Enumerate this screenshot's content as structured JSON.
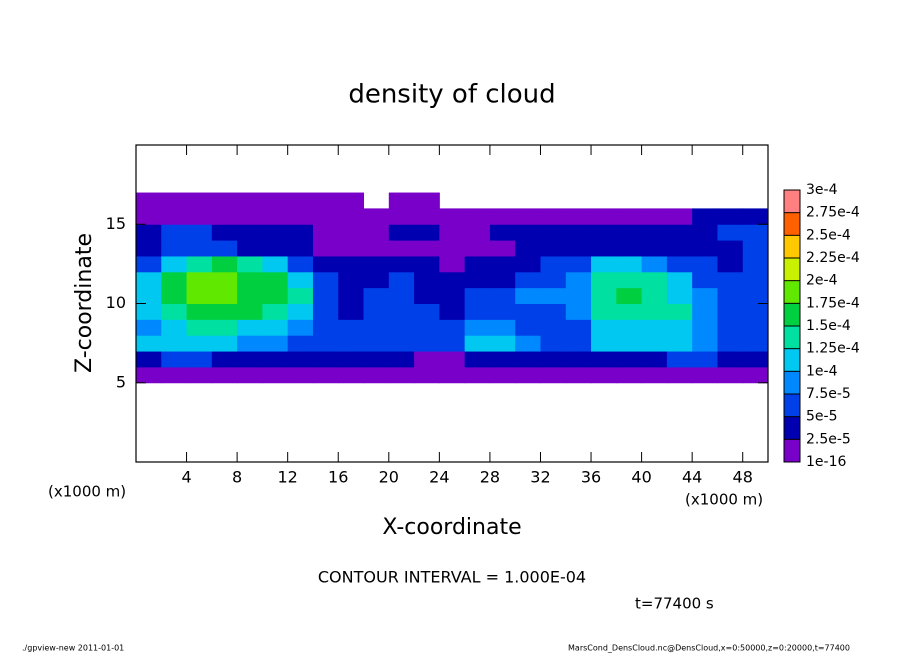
{
  "chart_data": {
    "type": "heatmap",
    "title": "density of cloud",
    "xlabel": "X-coordinate",
    "ylabel": "Z-coordinate",
    "xunit": "(x1000 m)",
    "yunit": "(x1000 m)",
    "contour_note": "CONTOUR INTERVAL = 1.000E-04",
    "time_label": "t=77400 s",
    "footer_left": "./gpview-new  2011-01-01",
    "footer_right": "MarsCond_DensCloud.nc@DensCloud,x=0:50000,z=0:20000,t=77400",
    "xlim": [
      0,
      50
    ],
    "ylim": [
      0,
      20
    ],
    "xticks": [
      4,
      8,
      12,
      16,
      20,
      24,
      28,
      32,
      36,
      40,
      44,
      48
    ],
    "yticks": [
      5,
      10,
      15
    ],
    "x": [
      1,
      3,
      5,
      7,
      9,
      11,
      13,
      15,
      17,
      19,
      21,
      23,
      25,
      27,
      29,
      31,
      33,
      35,
      37,
      39,
      41,
      43,
      45,
      47,
      49
    ],
    "y": [
      5.5,
      6.5,
      7.5,
      8.5,
      9.5,
      10.5,
      11.5,
      12.5,
      13.5,
      14.5,
      15.5,
      16.5
    ],
    "z": [
      [
        1e-05,
        1e-05,
        1e-05,
        1e-05,
        1e-05,
        1e-05,
        1e-05,
        1e-05,
        1e-05,
        1e-05,
        1e-05,
        1e-05,
        1e-05,
        1e-05,
        1e-05,
        1e-05,
        1e-05,
        1e-05,
        1e-05,
        1e-05,
        1e-05,
        1e-05,
        1e-05,
        1e-05,
        1e-05
      ],
      [
        4e-05,
        5e-05,
        5e-05,
        4e-05,
        3e-05,
        4e-05,
        4e-05,
        3e-05,
        3e-05,
        3e-05,
        3e-05,
        2e-05,
        2e-05,
        3e-05,
        4e-05,
        4e-05,
        4e-05,
        3e-05,
        3e-05,
        4e-05,
        4e-05,
        5e-05,
        5e-05,
        4e-05,
        4e-05
      ],
      [
        0.00011,
        0.00012,
        0.00011,
        0.0001,
        9e-05,
        8e-05,
        6e-05,
        5e-05,
        6e-05,
        6e-05,
        5e-05,
        5e-05,
        6e-05,
        0.000105,
        0.00011,
        9e-05,
        7e-05,
        6e-05,
        0.0001,
        0.00011,
        0.00011,
        0.0001,
        9e-05,
        7e-05,
        6e-05
      ],
      [
        8e-05,
        0.00011,
        0.00013,
        0.00013,
        0.00012,
        0.00011,
        9e-05,
        6e-05,
        5e-05,
        6e-05,
        7e-05,
        6e-05,
        5e-05,
        8e-05,
        9e-05,
        7e-05,
        6e-05,
        7e-05,
        0.00011,
        0.00012,
        0.00012,
        0.00011,
        8e-05,
        6e-05,
        7e-05
      ],
      [
        0.0001,
        0.00014,
        0.00016,
        0.00016,
        0.00015,
        0.00014,
        0.00012,
        6e-05,
        4e-05,
        5e-05,
        6e-05,
        5e-05,
        4e-05,
        5e-05,
        5e-05,
        6e-05,
        7e-05,
        8e-05,
        0.00013,
        0.000145,
        0.00014,
        0.00013,
        9e-05,
        6e-05,
        6e-05
      ],
      [
        0.00012,
        0.00016,
        0.000175,
        0.00018,
        0.00017,
        0.000155,
        0.00013,
        6e-05,
        4e-05,
        5e-05,
        5e-05,
        4e-05,
        4e-05,
        5e-05,
        6e-05,
        8e-05,
        8e-05,
        9e-05,
        0.00014,
        0.00015,
        0.000145,
        0.00012,
        8e-05,
        6e-05,
        5e-05
      ],
      [
        0.0001,
        0.000155,
        0.000175,
        0.00018,
        0.00017,
        0.000155,
        0.00012,
        6e-05,
        4e-05,
        4e-05,
        5e-05,
        4e-05,
        3e-05,
        4e-05,
        4e-05,
        6e-05,
        7e-05,
        9e-05,
        0.000135,
        0.00014,
        0.00013,
        0.0001,
        7e-05,
        5e-05,
        6e-05
      ],
      [
        6e-05,
        0.00011,
        0.00014,
        0.00015,
        0.00013,
        0.00011,
        7e-05,
        4e-05,
        3e-05,
        3e-05,
        3e-05,
        3e-05,
        2e-05,
        3e-05,
        3e-05,
        4e-05,
        5e-05,
        6e-05,
        0.00011,
        0.00011,
        9e-05,
        7e-05,
        5e-05,
        4e-05,
        6e-05
      ],
      [
        4e-05,
        5e-05,
        6e-05,
        5e-05,
        4e-05,
        3e-05,
        3e-05,
        2e-05,
        2e-05,
        1.5e-05,
        1.5e-05,
        2e-05,
        2e-05,
        2e-05,
        2e-05,
        3e-05,
        3e-05,
        3e-05,
        4e-05,
        4e-05,
        3e-05,
        3e-05,
        3e-05,
        4e-05,
        5e-05
      ],
      [
        4e-05,
        5e-05,
        5e-05,
        4e-05,
        4e-05,
        4e-05,
        3e-05,
        2e-05,
        2e-05,
        2e-05,
        3e-05,
        3e-05,
        2e-05,
        2e-05,
        3e-05,
        4e-05,
        4e-05,
        3e-05,
        3e-05,
        3e-05,
        3e-05,
        3e-05,
        4e-05,
        5e-05,
        6e-05
      ],
      [
        1.5e-05,
        1.5e-05,
        1.5e-05,
        1.5e-05,
        1.5e-05,
        1.5e-05,
        1.5e-05,
        1.5e-05,
        1.5e-05,
        1.5e-05,
        1.5e-05,
        1.5e-05,
        1.5e-05,
        1.5e-05,
        1.5e-05,
        1.5e-05,
        1.5e-05,
        1.5e-05,
        1.5e-05,
        1.5e-05,
        1.5e-05,
        2e-05,
        3e-05,
        3e-05,
        3e-05
      ],
      [
        1e-05,
        1e-05,
        1e-05,
        1e-05,
        1e-05,
        1e-05,
        1e-05,
        1e-05,
        1e-05,
        null,
        1e-05,
        1e-05,
        null,
        null,
        null,
        null,
        null,
        null,
        null,
        null,
        null,
        null,
        null,
        null,
        null
      ]
    ],
    "colorbar_ticks": [
      {
        "value": 1e-16,
        "label": "1e-16"
      },
      {
        "value": 2.5e-05,
        "label": "2.5e-5"
      },
      {
        "value": 5e-05,
        "label": "5e-5"
      },
      {
        "value": 7.5e-05,
        "label": "7.5e-5"
      },
      {
        "value": 0.0001,
        "label": "1e-4"
      },
      {
        "value": 0.000125,
        "label": "1.25e-4"
      },
      {
        "value": 0.00015,
        "label": "1.5e-4"
      },
      {
        "value": 0.000175,
        "label": "1.75e-4"
      },
      {
        "value": 0.0002,
        "label": "2e-4"
      },
      {
        "value": 0.000225,
        "label": "2.25e-4"
      },
      {
        "value": 0.00025,
        "label": "2.5e-4"
      },
      {
        "value": 0.000275,
        "label": "2.75e-4"
      },
      {
        "value": 0.0003,
        "label": "3e-4"
      }
    ],
    "colors": [
      "#7800c8",
      "#0000b0",
      "#0040e8",
      "#0088ff",
      "#00c8f0",
      "#00e0a0",
      "#00d040",
      "#60e800",
      "#c8f000",
      "#ffc800",
      "#ff6000",
      "#ff8080"
    ]
  }
}
